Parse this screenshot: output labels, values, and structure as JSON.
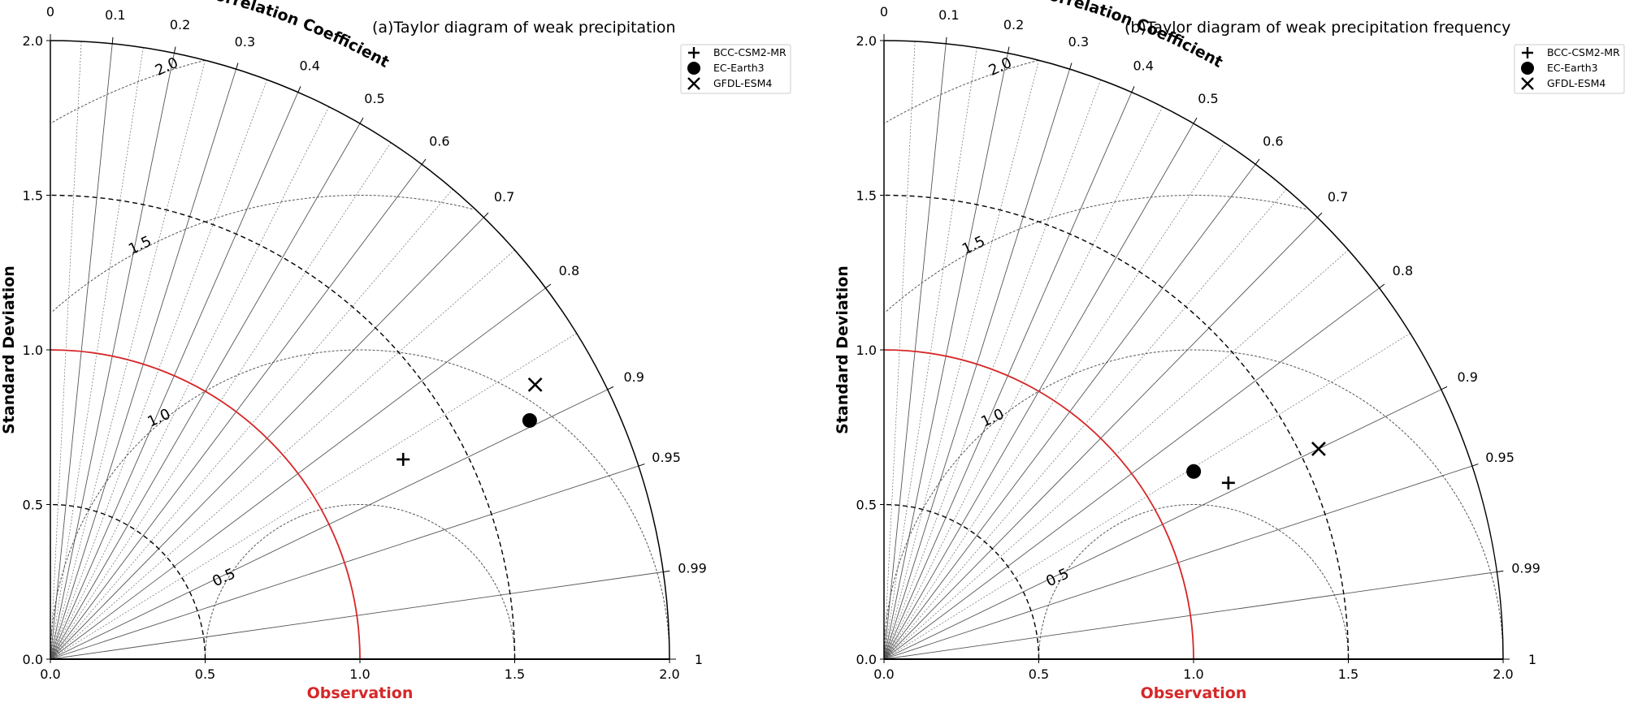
{
  "chart_data": [
    {
      "type": "taylor",
      "panel": "a",
      "title": "(a)Taylor diagram of weak precipitation",
      "ylabel": "Standard Deviation",
      "xlabel": "Observation",
      "corr_title": "Correlation Coefficient",
      "std_range": [
        0,
        2.0
      ],
      "std_ticks": [
        "0.0",
        "0.5",
        "1.0",
        "1.5",
        "2.0"
      ],
      "corr_ticks": [
        "0",
        "0.1",
        "0.2",
        "0.3",
        "0.4",
        "0.5",
        "0.6",
        "0.7",
        "0.8",
        "0.9",
        "0.95",
        "0.99",
        "1"
      ],
      "dashed_std_arcs": [
        0.5,
        1.5
      ],
      "reference_std": 1.0,
      "rms_contours": [
        "0.5",
        "1.0",
        "1.5",
        "2.0"
      ],
      "series": [
        {
          "name": "BCC-CSM2-MR",
          "marker": "plus",
          "std": 1.31,
          "corr": 0.87
        },
        {
          "name": "EC-Earth3",
          "marker": "circle",
          "std": 1.73,
          "corr": 0.895
        },
        {
          "name": "GFDL-ESM4",
          "marker": "x",
          "std": 1.8,
          "corr": 0.87
        }
      ]
    },
    {
      "type": "taylor",
      "panel": "b",
      "title": "(b)Taylor diagram of weak precipitation frequency",
      "ylabel": "Standard Deviation",
      "xlabel": "Observation",
      "corr_title": "Correlation Coefficient",
      "std_range": [
        0,
        2.0
      ],
      "std_ticks": [
        "0.0",
        "0.5",
        "1.0",
        "1.5",
        "2.0"
      ],
      "corr_ticks": [
        "0",
        "0.1",
        "0.2",
        "0.3",
        "0.4",
        "0.5",
        "0.6",
        "0.7",
        "0.8",
        "0.9",
        "0.95",
        "0.99",
        "1"
      ],
      "dashed_std_arcs": [
        0.5,
        1.5
      ],
      "reference_std": 1.0,
      "rms_contours": [
        "0.5",
        "1.0",
        "1.5",
        "2.0"
      ],
      "series": [
        {
          "name": "BCC-CSM2-MR",
          "marker": "plus",
          "std": 1.25,
          "corr": 0.89
        },
        {
          "name": "EC-Earth3",
          "marker": "circle",
          "std": 1.17,
          "corr": 0.855
        },
        {
          "name": "GFDL-ESM4",
          "marker": "x",
          "std": 1.56,
          "corr": 0.9
        }
      ]
    }
  ],
  "colors": {
    "reference": "#d62728",
    "ink": "#000000",
    "grid": "#555555"
  }
}
